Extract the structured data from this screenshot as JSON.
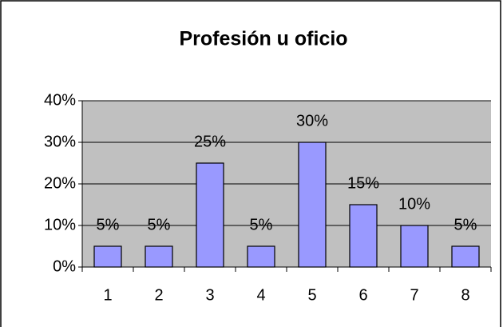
{
  "chart_data": {
    "type": "bar",
    "title": "Profesión u oficio",
    "categories": [
      "1",
      "2",
      "3",
      "4",
      "5",
      "6",
      "7",
      "8"
    ],
    "values": [
      5,
      5,
      25,
      5,
      30,
      15,
      10,
      5
    ],
    "value_labels": [
      "5%",
      "5%",
      "25%",
      "5%",
      "30%",
      "15%",
      "10%",
      "5%"
    ],
    "color": "#9999ff",
    "ylim": [
      0,
      40
    ],
    "yticks": [
      {
        "value": 0,
        "label": "0%"
      },
      {
        "value": 10,
        "label": "10%"
      },
      {
        "value": 20,
        "label": "20%"
      },
      {
        "value": 30,
        "label": "30%"
      },
      {
        "value": 40,
        "label": "40%"
      }
    ],
    "grid": true
  }
}
